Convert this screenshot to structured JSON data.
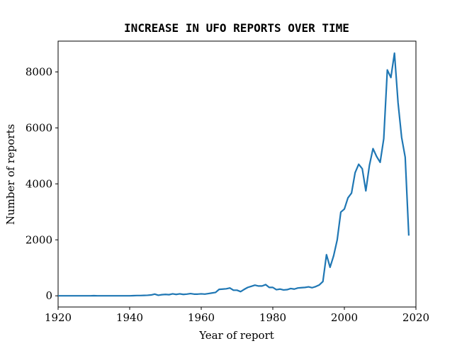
{
  "chart_data": {
    "type": "line",
    "title": "INCREASE IN UFO REPORTS OVER TIME",
    "x_label": "Year of report",
    "y_label": "Number of reports",
    "color": "#1f77b4",
    "grid": false,
    "x": [
      1920,
      1921,
      1922,
      1923,
      1924,
      1925,
      1926,
      1927,
      1928,
      1929,
      1930,
      1931,
      1932,
      1933,
      1934,
      1935,
      1936,
      1937,
      1938,
      1939,
      1940,
      1941,
      1942,
      1943,
      1944,
      1945,
      1946,
      1947,
      1948,
      1949,
      1950,
      1951,
      1952,
      1953,
      1954,
      1955,
      1956,
      1957,
      1958,
      1959,
      1960,
      1961,
      1962,
      1963,
      1964,
      1965,
      1966,
      1967,
      1968,
      1969,
      1970,
      1971,
      1972,
      1973,
      1974,
      1975,
      1976,
      1977,
      1978,
      1979,
      1980,
      1981,
      1982,
      1983,
      1984,
      1985,
      1986,
      1987,
      1988,
      1989,
      1990,
      1991,
      1992,
      1993,
      1994,
      1995,
      1996,
      1997,
      1998,
      1999,
      2000,
      2001,
      2002,
      2003,
      2004,
      2005,
      2006,
      2007,
      2008,
      2009,
      2010,
      2011,
      2012,
      2013,
      2014,
      2015,
      2016,
      2017,
      2018
    ],
    "values": [
      0,
      0,
      0,
      0,
      0,
      0,
      0,
      0,
      0,
      0,
      5,
      0,
      0,
      0,
      0,
      0,
      0,
      0,
      0,
      0,
      0,
      5,
      10,
      10,
      15,
      20,
      30,
      60,
      20,
      40,
      50,
      40,
      70,
      50,
      70,
      50,
      60,
      80,
      60,
      60,
      70,
      60,
      80,
      100,
      120,
      230,
      240,
      250,
      280,
      200,
      200,
      150,
      230,
      300,
      340,
      380,
      350,
      350,
      400,
      300,
      300,
      220,
      240,
      210,
      220,
      260,
      240,
      280,
      290,
      300,
      320,
      290,
      330,
      390,
      510,
      1470,
      1020,
      1430,
      2000,
      2990,
      3100,
      3500,
      3670,
      4400,
      4700,
      4540,
      3750,
      4660,
      5260,
      4980,
      4770,
      5610,
      8070,
      7800,
      8670,
      6900,
      5660,
      4950,
      2150
    ],
    "xlim": [
      1920,
      2020
    ],
    "xticks": [
      1920,
      1940,
      1960,
      1980,
      2000,
      2020
    ],
    "ylim": [
      -400,
      9100
    ],
    "yticks": [
      0,
      2000,
      4000,
      6000,
      8000
    ]
  }
}
